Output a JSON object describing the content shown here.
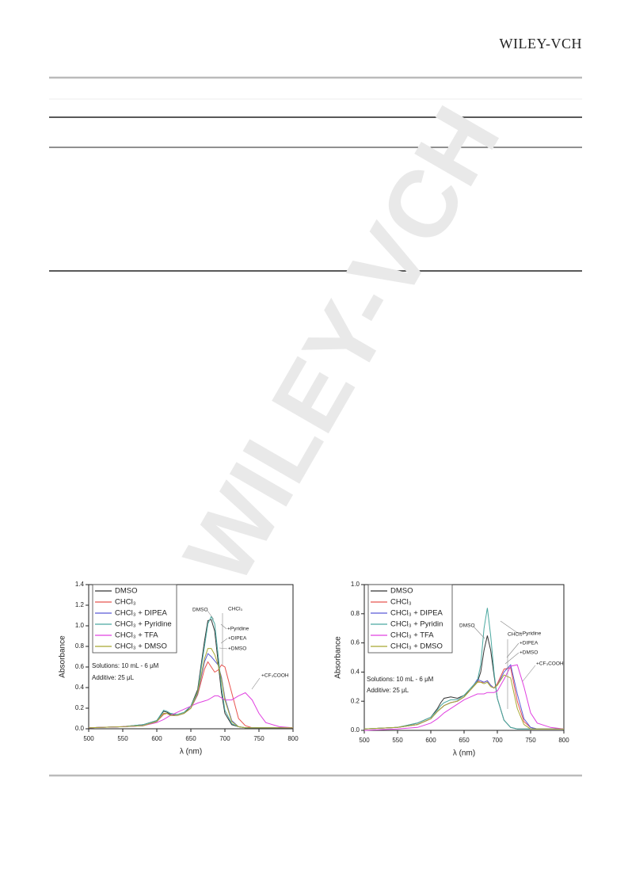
{
  "header": {
    "logo": "WILEY-VCH"
  },
  "watermark": "WILEY-VCH",
  "chart_data": [
    {
      "type": "line",
      "xlabel": "λ (nm)",
      "ylabel": "Absorbance",
      "xlim": [
        500,
        800
      ],
      "xticks": [
        500,
        550,
        600,
        650,
        700,
        750,
        800
      ],
      "ylim": [
        0,
        1.4
      ],
      "yticks": [
        {
          "value": 0,
          "label": "0.0"
        },
        0.2,
        0.4,
        0.6,
        0.8,
        {
          "value": 1,
          "label": "1.0"
        },
        1.2,
        1.4
      ],
      "legend": "upper left",
      "x": [
        500,
        550,
        580,
        600,
        610,
        615,
        620,
        630,
        640,
        650,
        660,
        670,
        675,
        680,
        685,
        690,
        695,
        700,
        710,
        720,
        730,
        740,
        750,
        760,
        780,
        800
      ],
      "series": [
        {
          "name": "DMSO",
          "color": "#333333",
          "values": [
            0.01,
            0.02,
            0.04,
            0.08,
            0.17,
            0.16,
            0.14,
            0.13,
            0.15,
            0.22,
            0.38,
            0.85,
            1.05,
            1.06,
            0.95,
            0.65,
            0.35,
            0.15,
            0.04,
            0.02,
            0.01,
            0.01,
            0.01,
            0.01,
            0.01,
            0.01
          ]
        },
        {
          "name": "CHCl₃",
          "color": "#e8534f",
          "values": [
            0.01,
            0.02,
            0.03,
            0.07,
            0.14,
            0.15,
            0.13,
            0.13,
            0.15,
            0.2,
            0.33,
            0.58,
            0.65,
            0.6,
            0.55,
            0.57,
            0.62,
            0.6,
            0.35,
            0.1,
            0.03,
            0.01,
            0.01,
            0.01,
            0.01,
            0.01
          ]
        },
        {
          "name": "CHCl₃ + DIPEA",
          "color": "#5b5bd6",
          "values": [
            0.01,
            0.02,
            0.03,
            0.07,
            0.15,
            0.15,
            0.13,
            0.13,
            0.15,
            0.2,
            0.34,
            0.65,
            0.73,
            0.7,
            0.66,
            0.62,
            0.5,
            0.3,
            0.08,
            0.02,
            0.01,
            0.01,
            0.01,
            0.01,
            0.01,
            0.01
          ]
        },
        {
          "name": "CHCl₃ + Pyridine",
          "color": "#4aa8a0",
          "values": [
            0.01,
            0.02,
            0.04,
            0.08,
            0.18,
            0.17,
            0.15,
            0.14,
            0.16,
            0.22,
            0.36,
            0.8,
            1.02,
            1.09,
            1.02,
            0.72,
            0.4,
            0.18,
            0.05,
            0.02,
            0.01,
            0.01,
            0.01,
            0.01,
            0.01,
            0.01
          ]
        },
        {
          "name": "CHCl₃ + TFA",
          "color": "#e040e0",
          "values": [
            0.01,
            0.02,
            0.03,
            0.06,
            0.09,
            0.11,
            0.13,
            0.16,
            0.19,
            0.22,
            0.25,
            0.27,
            0.28,
            0.3,
            0.32,
            0.32,
            0.3,
            0.28,
            0.28,
            0.32,
            0.35,
            0.28,
            0.15,
            0.06,
            0.02,
            0.01
          ]
        },
        {
          "name": "CHCl₃ + DMSO",
          "color": "#a8a832",
          "values": [
            0.01,
            0.02,
            0.03,
            0.07,
            0.15,
            0.15,
            0.13,
            0.13,
            0.15,
            0.2,
            0.35,
            0.68,
            0.78,
            0.78,
            0.72,
            0.62,
            0.48,
            0.28,
            0.07,
            0.02,
            0.01,
            0.01,
            0.01,
            0.01,
            0.01,
            0.01
          ]
        }
      ],
      "annotations": [
        "DMSO",
        "CHCl₃",
        "+Pyridine",
        "+DIPEA",
        "+DMSO",
        "+CF₃COOH",
        "Solutions: 10 mL - 6 μM",
        "Additive: 25 μL"
      ]
    },
    {
      "type": "line",
      "xlabel": "λ (nm)",
      "ylabel": "Absorbance",
      "xlim": [
        500,
        800
      ],
      "xticks": [
        500,
        550,
        600,
        650,
        700,
        750,
        800
      ],
      "ylim": [
        0,
        1
      ],
      "yticks": [
        {
          "value": 0,
          "label": "0.0"
        },
        0.2,
        0.4,
        0.6,
        0.8,
        {
          "value": 1,
          "label": "1.0"
        }
      ],
      "legend": "upper left",
      "x": [
        500,
        550,
        580,
        600,
        610,
        615,
        620,
        630,
        640,
        650,
        660,
        670,
        675,
        680,
        685,
        690,
        695,
        700,
        710,
        720,
        730,
        740,
        750,
        760,
        780,
        800
      ],
      "series": [
        {
          "name": "DMSO",
          "color": "#333333",
          "values": [
            0.01,
            0.02,
            0.05,
            0.09,
            0.15,
            0.19,
            0.22,
            0.23,
            0.22,
            0.24,
            0.28,
            0.33,
            0.4,
            0.55,
            0.65,
            0.55,
            0.38,
            0.22,
            0.07,
            0.02,
            0.01,
            0.01,
            0.01,
            0.01,
            0.01,
            0.01
          ]
        },
        {
          "name": "CHCl₃",
          "color": "#e8534f",
          "values": [
            0.01,
            0.02,
            0.04,
            0.08,
            0.13,
            0.15,
            0.17,
            0.19,
            0.2,
            0.23,
            0.28,
            0.34,
            0.33,
            0.33,
            0.34,
            0.31,
            0.29,
            0.32,
            0.42,
            0.43,
            0.2,
            0.06,
            0.02,
            0.01,
            0.01,
            0.01
          ]
        },
        {
          "name": "CHCl₃ + DIPEA",
          "color": "#5b5bd6",
          "values": [
            0.01,
            0.02,
            0.04,
            0.08,
            0.13,
            0.15,
            0.17,
            0.19,
            0.2,
            0.23,
            0.28,
            0.35,
            0.34,
            0.33,
            0.34,
            0.31,
            0.29,
            0.31,
            0.4,
            0.45,
            0.25,
            0.08,
            0.02,
            0.01,
            0.01,
            0.01
          ]
        },
        {
          "name": "CHCl₃ + Pyridin",
          "color": "#4aa8a0",
          "values": [
            0.01,
            0.02,
            0.05,
            0.09,
            0.14,
            0.17,
            0.19,
            0.21,
            0.21,
            0.24,
            0.29,
            0.34,
            0.45,
            0.7,
            0.84,
            0.65,
            0.4,
            0.22,
            0.07,
            0.02,
            0.01,
            0.01,
            0.01,
            0.01,
            0.01,
            0.01
          ]
        },
        {
          "name": "CHCl₃ + TFA",
          "color": "#e040e0",
          "values": [
            0,
            0.01,
            0.02,
            0.05,
            0.08,
            0.1,
            0.12,
            0.15,
            0.18,
            0.21,
            0.23,
            0.25,
            0.25,
            0.25,
            0.26,
            0.26,
            0.26,
            0.27,
            0.35,
            0.44,
            0.45,
            0.3,
            0.12,
            0.05,
            0.02,
            0.01
          ]
        },
        {
          "name": "CHCl₃ + DMSO",
          "color": "#a8a832",
          "values": [
            0.01,
            0.02,
            0.04,
            0.08,
            0.13,
            0.15,
            0.17,
            0.19,
            0.2,
            0.23,
            0.28,
            0.33,
            0.33,
            0.32,
            0.33,
            0.3,
            0.29,
            0.31,
            0.38,
            0.36,
            0.15,
            0.04,
            0.01,
            0.01,
            0.01,
            0.01
          ]
        }
      ],
      "annotations": [
        "CHCl₃",
        "DMSO",
        "+Pyridine",
        "+DIPEA",
        "+DMSO",
        "+CF₃COOH",
        "Solutions: 10 mL - 6 μM",
        "Additive: 25 μL"
      ]
    }
  ]
}
